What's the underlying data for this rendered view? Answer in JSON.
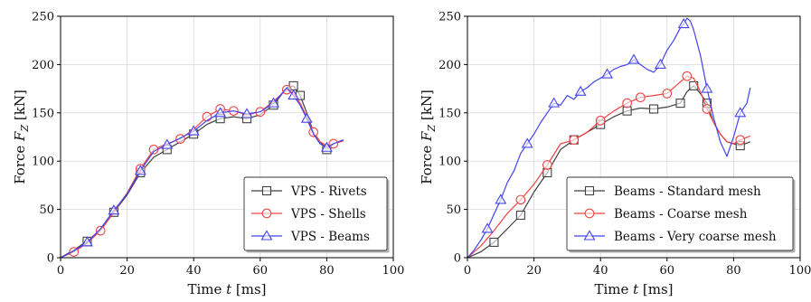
{
  "chart_data": [
    {
      "type": "line",
      "xlabel_prefix": "Time ",
      "xlabel_var": "t",
      "xlabel_unit": " [ms]",
      "ylabel_prefix": "Force ",
      "ylabel_var": "F",
      "ylabel_sub": "Z",
      "ylabel_unit": " [kN]",
      "xlim": [
        0,
        100
      ],
      "ylim": [
        0,
        250
      ],
      "xticks": [
        0,
        20,
        40,
        60,
        80,
        100
      ],
      "yticks": [
        0,
        50,
        100,
        150,
        200,
        250
      ],
      "grid": true,
      "legend_position": "bottom-right",
      "series": [
        {
          "name": "VPS - Rivets",
          "color": "#404040",
          "marker": "square",
          "x": [
            0,
            4,
            8,
            12,
            16,
            20,
            24,
            28,
            32,
            36,
            40,
            44,
            48,
            52,
            56,
            60,
            64,
            68,
            70,
            72,
            74,
            76,
            78,
            80,
            82,
            85
          ],
          "y": [
            0,
            8,
            17,
            29,
            47,
            65,
            88,
            104,
            112,
            120,
            128,
            138,
            144,
            146,
            144,
            148,
            158,
            176,
            178,
            168,
            150,
            130,
            120,
            112,
            118,
            122
          ],
          "marker_idx": [
            2,
            4,
            6,
            8,
            10,
            12,
            14,
            16,
            18,
            19,
            23
          ]
        },
        {
          "name": "VPS - Shells",
          "color": "#ee4444",
          "marker": "circle",
          "x": [
            0,
            4,
            8,
            12,
            16,
            20,
            24,
            28,
            32,
            36,
            40,
            44,
            48,
            52,
            56,
            60,
            64,
            68,
            70,
            72,
            74,
            76,
            78,
            80,
            82,
            85
          ],
          "y": [
            0,
            6,
            15,
            28,
            47,
            67,
            92,
            112,
            118,
            123,
            133,
            146,
            154,
            152,
            148,
            151,
            162,
            174,
            170,
            160,
            146,
            130,
            120,
            116,
            118,
            121
          ],
          "marker_idx": [
            1,
            3,
            6,
            7,
            9,
            11,
            12,
            13,
            15,
            17,
            21,
            24
          ]
        },
        {
          "name": "VPS - Beams",
          "color": "#4444ee",
          "marker": "triangle",
          "x": [
            0,
            4,
            8,
            12,
            16,
            20,
            24,
            28,
            32,
            36,
            40,
            44,
            48,
            52,
            56,
            60,
            64,
            68,
            70,
            72,
            74,
            76,
            78,
            80,
            82,
            85
          ],
          "y": [
            0,
            7,
            16,
            30,
            49,
            66,
            90,
            110,
            117,
            124,
            131,
            142,
            150,
            152,
            149,
            151,
            160,
            176,
            168,
            158,
            144,
            128,
            118,
            114,
            118,
            122
          ],
          "marker_idx": [
            2,
            4,
            6,
            8,
            10,
            12,
            14,
            16,
            18,
            20,
            23
          ]
        }
      ]
    },
    {
      "type": "line",
      "xlabel_prefix": "Time ",
      "xlabel_var": "t",
      "xlabel_unit": " [ms]",
      "ylabel_prefix": "Force ",
      "ylabel_var": "F",
      "ylabel_sub": "Z",
      "ylabel_unit": " [kN]",
      "xlim": [
        0,
        100
      ],
      "ylim": [
        0,
        250
      ],
      "xticks": [
        0,
        20,
        40,
        60,
        80,
        100
      ],
      "yticks": [
        0,
        50,
        100,
        150,
        200,
        250
      ],
      "grid": true,
      "legend_position": "bottom-right",
      "series": [
        {
          "name": "Beams - Standard mesh",
          "color": "#404040",
          "marker": "square",
          "x": [
            0,
            4,
            8,
            12,
            16,
            20,
            24,
            28,
            32,
            36,
            40,
            44,
            48,
            52,
            56,
            60,
            64,
            66,
            68,
            70,
            72,
            74,
            76,
            78,
            80,
            82,
            85
          ],
          "y": [
            0,
            6,
            16,
            30,
            44,
            68,
            88,
            112,
            122,
            130,
            138,
            146,
            152,
            155,
            154,
            156,
            160,
            172,
            178,
            170,
            160,
            140,
            128,
            120,
            118,
            116,
            120
          ],
          "marker_idx": [
            2,
            4,
            6,
            8,
            10,
            12,
            14,
            16,
            18,
            20,
            25
          ]
        },
        {
          "name": "Beams - Coarse mesh",
          "color": "#ee4444",
          "marker": "circle",
          "x": [
            0,
            4,
            8,
            12,
            16,
            20,
            24,
            28,
            32,
            36,
            40,
            44,
            48,
            52,
            56,
            60,
            64,
            66,
            68,
            70,
            72,
            74,
            76,
            78,
            80,
            82,
            85
          ],
          "y": [
            0,
            12,
            28,
            46,
            60,
            76,
            96,
            118,
            122,
            130,
            142,
            152,
            160,
            166,
            168,
            170,
            182,
            188,
            186,
            172,
            154,
            140,
            128,
            120,
            118,
            122,
            126
          ],
          "marker_idx": [
            4,
            6,
            8,
            10,
            12,
            13,
            15,
            17,
            20,
            25
          ]
        },
        {
          "name": "Beams - Very coarse mesh",
          "color": "#4444ee",
          "marker": "triangle",
          "x": [
            0,
            2,
            4,
            6,
            8,
            10,
            12,
            14,
            16,
            18,
            20,
            22,
            24,
            26,
            28,
            30,
            32,
            34,
            36,
            38,
            40,
            42,
            44,
            46,
            48,
            50,
            52,
            54,
            56,
            58,
            60,
            62,
            64,
            65,
            66,
            67,
            68,
            70,
            72,
            74,
            76,
            78,
            80,
            82,
            84,
            85
          ],
          "y": [
            0,
            8,
            18,
            30,
            45,
            60,
            78,
            90,
            108,
            118,
            128,
            140,
            150,
            160,
            158,
            168,
            164,
            172,
            176,
            182,
            186,
            190,
            195,
            198,
            200,
            205,
            200,
            195,
            192,
            200,
            215,
            225,
            238,
            242,
            248,
            245,
            236,
            210,
            175,
            145,
            120,
            105,
            125,
            150,
            160,
            176
          ],
          "marker_idx": [
            3,
            5,
            9,
            13,
            17,
            21,
            25,
            29,
            33,
            38,
            43
          ]
        }
      ]
    }
  ]
}
